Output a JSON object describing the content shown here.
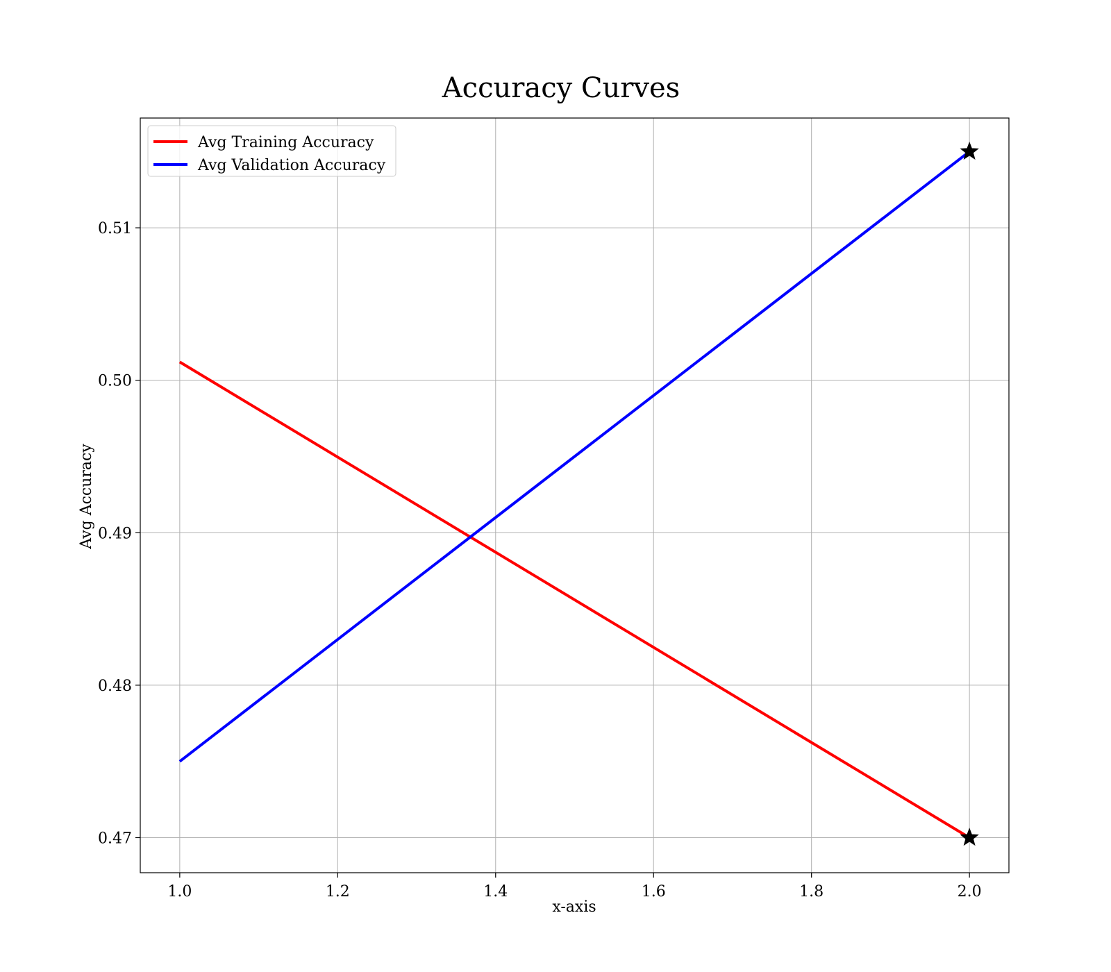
{
  "chart_data": {
    "type": "line",
    "title": "Accuracy Curves",
    "xlabel": "x-axis",
    "ylabel": "Avg Accuracy",
    "xlim": [
      0.95,
      2.05
    ],
    "ylim": [
      0.4677,
      0.5172
    ],
    "x_ticks": [
      1.0,
      1.2,
      1.4,
      1.6,
      1.8,
      2.0
    ],
    "x_tick_labels": [
      "1.0",
      "1.2",
      "1.4",
      "1.6",
      "1.8",
      "2.0"
    ],
    "y_ticks": [
      0.47,
      0.48,
      0.49,
      0.5,
      0.51
    ],
    "y_tick_labels": [
      "0.47",
      "0.48",
      "0.49",
      "0.50",
      "0.51"
    ],
    "grid": true,
    "legend_position": "top-left",
    "x": [
      1,
      2
    ],
    "series": [
      {
        "name": "Avg Training Accuracy",
        "color": "#ff0000",
        "values": [
          0.5012,
          0.47
        ],
        "marker_at": [
          2
        ]
      },
      {
        "name": "Avg Validation Accuracy",
        "color": "#0000ff",
        "values": [
          0.475,
          0.515
        ],
        "marker_at": [
          2
        ]
      }
    ],
    "marker_shape": "star",
    "marker_color": "#000000"
  }
}
